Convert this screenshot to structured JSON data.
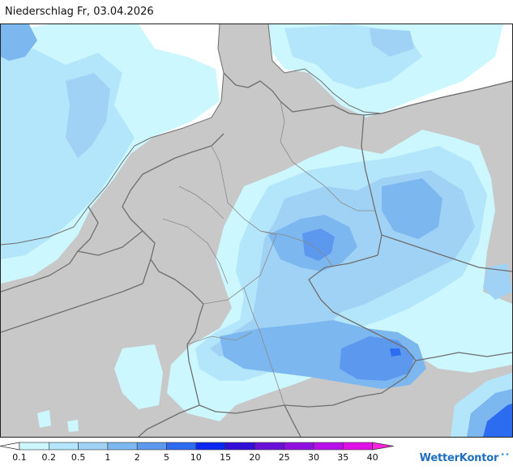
{
  "title": "Niederschlag Fr, 03.04.2026",
  "colors": {
    "land": "#c8c8c8",
    "sea": "#ffffff",
    "border": "#6e6e6e",
    "precip_0_1": "#ccf7ff",
    "precip_0_2": "#b3e6fb",
    "precip_0_5": "#9fd2f5",
    "precip_1": "#7db7f0",
    "precip_2": "#5c98ee"
  },
  "legend": {
    "ticks": [
      "0.1",
      "0.2",
      "0.5",
      "1",
      "2",
      "5",
      "10",
      "15",
      "20",
      "25",
      "30",
      "35",
      "40"
    ],
    "colors": [
      "#ccf7ff",
      "#b3e6fb",
      "#9fd2f5",
      "#7db7f0",
      "#5c98ee",
      "#2c6cf0",
      "#0b28f0",
      "#3210d8",
      "#6a10d8",
      "#9010e0",
      "#b810e8",
      "#e010e8",
      "#ff20e0"
    ]
  },
  "brand": {
    "name": "WetterKontor",
    "icon": "raindrop-icon"
  }
}
